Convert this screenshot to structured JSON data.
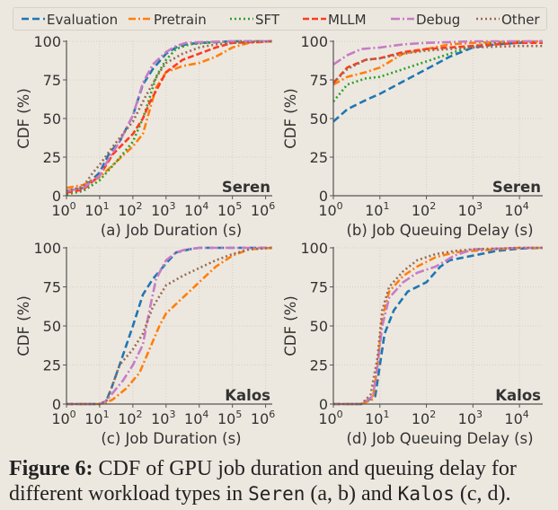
{
  "legend": [
    {
      "name": "Evaluation",
      "color": "#1f77b4",
      "dash": "8,4"
    },
    {
      "name": "Pretrain",
      "color": "#ff7f0e",
      "dash": "8,3,2,3"
    },
    {
      "name": "SFT",
      "color": "#2ca02c",
      "dash": "2,3"
    },
    {
      "name": "MLLM",
      "color": "#ff3b1f",
      "dash": "7,3"
    },
    {
      "name": "Debug",
      "color": "#c77cc5",
      "dash": "10,3,2,3"
    },
    {
      "name": "Other",
      "color": "#9a6a55",
      "dash": "2,3"
    }
  ],
  "caption": {
    "label": "Figure 6:",
    "text1": " CDF of GPU job duration and queuing delay for different workload types in ",
    "seren": "Seren",
    "text2": " (a, b) and ",
    "kalos": "Kalos",
    "text3": " (c, d)."
  },
  "chart_data": [
    {
      "id": "a",
      "type": "line",
      "title": "Seren",
      "xlabel": "(a) Job Duration (s)",
      "ylabel": "CDF (%)",
      "xscale": "log10",
      "xlim_exp": [
        0,
        6.2
      ],
      "ylim": [
        0,
        100
      ],
      "xticks_exp": [
        0,
        1,
        2,
        3,
        4,
        5,
        6
      ],
      "yticks": [
        0,
        25,
        50,
        75,
        100
      ],
      "grid": true,
      "series": [
        {
          "name": "Evaluation",
          "x_exp": [
            0,
            0.5,
            1,
            1.3,
            1.6,
            2,
            2.3,
            2.6,
            3,
            3.3,
            3.6,
            4,
            5,
            6.2
          ],
          "y": [
            3,
            5,
            15,
            28,
            35,
            52,
            72,
            82,
            92,
            96,
            98,
            99,
            100,
            100
          ]
        },
        {
          "name": "Pretrain",
          "x_exp": [
            0,
            0.5,
            1,
            1.5,
            2,
            2.3,
            2.5,
            2.7,
            3,
            3.5,
            4,
            4.5,
            5,
            5.5,
            6.2
          ],
          "y": [
            5,
            7,
            12,
            22,
            32,
            40,
            55,
            70,
            80,
            84,
            86,
            90,
            96,
            99,
            100
          ]
        },
        {
          "name": "SFT",
          "x_exp": [
            0,
            0.5,
            1,
            1.5,
            2,
            2.3,
            2.5,
            2.7,
            3,
            3.3,
            3.7,
            4.2,
            5,
            6.2
          ],
          "y": [
            1,
            3,
            10,
            22,
            35,
            50,
            63,
            77,
            88,
            95,
            98,
            99,
            100,
            100
          ]
        },
        {
          "name": "MLLM",
          "x_exp": [
            0,
            0.5,
            1,
            1.4,
            2,
            2.3,
            2.5,
            2.8,
            3,
            3.5,
            4,
            4.5,
            5,
            6.2
          ],
          "y": [
            2,
            4,
            13,
            27,
            40,
            50,
            60,
            72,
            80,
            88,
            92,
            96,
            99,
            100
          ]
        },
        {
          "name": "Debug",
          "x_exp": [
            0,
            0.5,
            1,
            1.3,
            1.6,
            2,
            2.3,
            2.6,
            3,
            3.3,
            3.6,
            4,
            5,
            6.2
          ],
          "y": [
            3,
            5,
            13,
            25,
            35,
            52,
            73,
            85,
            93,
            97,
            99,
            99.5,
            100,
            100
          ]
        },
        {
          "name": "Other",
          "x_exp": [
            0,
            0.5,
            0.8,
            1,
            1.4,
            2,
            2.4,
            2.8,
            3,
            3.5,
            4,
            4.5,
            5,
            6.2
          ],
          "y": [
            3,
            6,
            15,
            20,
            32,
            48,
            65,
            80,
            86,
            92,
            96,
            98,
            99,
            100
          ]
        }
      ]
    },
    {
      "id": "b",
      "type": "line",
      "title": "Seren",
      "xlabel": "(b) Job Queuing Delay (s)",
      "ylabel": "CDF (%)",
      "xscale": "log10",
      "xlim_exp": [
        0,
        4.5
      ],
      "ylim": [
        0,
        100
      ],
      "xticks_exp": [
        0,
        1,
        2,
        3,
        4
      ],
      "yticks": [
        0,
        25,
        50,
        75,
        100
      ],
      "grid": true,
      "series": [
        {
          "name": "Evaluation",
          "x_exp": [
            0,
            0.3,
            0.7,
            1,
            1.5,
            2,
            2.5,
            3,
            3.5,
            4,
            4.5
          ],
          "y": [
            48,
            56,
            62,
            66,
            74,
            82,
            90,
            96,
            98,
            99,
            100
          ]
        },
        {
          "name": "Pretrain",
          "x_exp": [
            0,
            0.3,
            0.7,
            1,
            1.5,
            2,
            2.5,
            3,
            3.5,
            4,
            4.5
          ],
          "y": [
            72,
            77,
            80,
            83,
            92,
            95,
            98,
            99,
            99.5,
            100,
            100
          ]
        },
        {
          "name": "SFT",
          "x_exp": [
            0,
            0.3,
            0.7,
            1,
            1.5,
            2,
            2.5,
            3,
            3.5,
            4,
            4.5
          ],
          "y": [
            61,
            72,
            76,
            77,
            82,
            87,
            92,
            97,
            99,
            99.5,
            100
          ]
        },
        {
          "name": "MLLM",
          "x_exp": [
            0,
            0.3,
            0.7,
            1,
            1.5,
            2,
            2.5,
            3,
            3.5,
            4,
            4.5
          ],
          "y": [
            73,
            83,
            88,
            89,
            93,
            95,
            96,
            97,
            98,
            99,
            99
          ]
        },
        {
          "name": "Debug",
          "x_exp": [
            0,
            0.3,
            0.6,
            1,
            1.5,
            2,
            2.5,
            3,
            3.5,
            4,
            4.5
          ],
          "y": [
            85,
            91,
            95,
            96,
            98,
            99,
            99.5,
            100,
            100,
            100,
            100
          ]
        },
        {
          "name": "Other",
          "x_exp": [
            0,
            0.3,
            0.7,
            1,
            1.5,
            2,
            2.5,
            3,
            3.5,
            4,
            4.5
          ],
          "y": [
            73,
            82,
            88,
            89,
            92,
            94,
            95,
            96,
            96.5,
            97,
            97
          ]
        }
      ]
    },
    {
      "id": "c",
      "type": "line",
      "title": "Kalos",
      "xlabel": "(c) Job Duration (s)",
      "ylabel": "CDF (%)",
      "xscale": "log10",
      "xlim_exp": [
        0,
        6.2
      ],
      "ylim": [
        0,
        100
      ],
      "xticks_exp": [
        0,
        1,
        2,
        3,
        4,
        5,
        6
      ],
      "yticks": [
        0,
        25,
        50,
        75,
        100
      ],
      "grid": true,
      "series": [
        {
          "name": "Evaluation",
          "x_exp": [
            0,
            1,
            1.2,
            1.35,
            1.6,
            2,
            2.3,
            2.6,
            3,
            3.3,
            3.7,
            4,
            5,
            6.2
          ],
          "y": [
            0,
            0,
            2,
            10,
            25,
            50,
            70,
            80,
            90,
            97,
            99,
            100,
            100,
            100
          ]
        },
        {
          "name": "Pretrain",
          "x_exp": [
            0,
            1,
            1.2,
            1.4,
            1.8,
            2.2,
            2.5,
            2.8,
            3,
            3.5,
            4,
            4.5,
            5,
            5.5,
            6.2
          ],
          "y": [
            0,
            0,
            1,
            3,
            10,
            20,
            35,
            50,
            58,
            68,
            78,
            88,
            95,
            99,
            100
          ]
        },
        {
          "name": "Debug",
          "x_exp": [
            0,
            1,
            1.2,
            1.35,
            1.7,
            2,
            2.3,
            2.5,
            2.7,
            3,
            3.3,
            3.6,
            4,
            5,
            6.2
          ],
          "y": [
            0,
            0,
            2,
            6,
            15,
            25,
            38,
            60,
            80,
            92,
            97,
            99,
            100,
            100,
            100
          ]
        },
        {
          "name": "Other",
          "x_exp": [
            0,
            1,
            1.2,
            1.35,
            1.6,
            2,
            2.3,
            2.6,
            3,
            3.5,
            4,
            4.5,
            5,
            5.5,
            6.2
          ],
          "y": [
            0,
            0,
            2,
            10,
            25,
            35,
            45,
            62,
            76,
            82,
            87,
            92,
            96,
            99,
            100
          ]
        }
      ]
    },
    {
      "id": "d",
      "type": "line",
      "title": "Kalos",
      "xlabel": "(d) Job Queuing Delay (s)",
      "ylabel": "CDF (%)",
      "xscale": "log10",
      "xlim_exp": [
        0,
        4.5
      ],
      "ylim": [
        0,
        100
      ],
      "xticks_exp": [
        0,
        1,
        2,
        3,
        4
      ],
      "yticks": [
        0,
        25,
        50,
        75,
        100
      ],
      "grid": true,
      "series": [
        {
          "name": "Evaluation",
          "x_exp": [
            0,
            0.6,
            0.9,
            1,
            1.1,
            1.3,
            1.6,
            2,
            2.3,
            2.5,
            3,
            3.5,
            4,
            4.5
          ],
          "y": [
            0,
            0,
            5,
            25,
            45,
            60,
            72,
            78,
            88,
            92,
            95,
            98,
            99.5,
            100
          ]
        },
        {
          "name": "Pretrain",
          "x_exp": [
            0,
            0.6,
            0.85,
            0.95,
            1.05,
            1.2,
            1.5,
            1.8,
            2.2,
            2.6,
            3,
            3.5,
            4,
            4.5
          ],
          "y": [
            0,
            0,
            3,
            25,
            55,
            72,
            82,
            88,
            94,
            97,
            98,
            99,
            100,
            100
          ]
        },
        {
          "name": "Debug",
          "x_exp": [
            0,
            0.6,
            0.85,
            0.95,
            1.05,
            1.2,
            1.5,
            1.8,
            2.2,
            2.6,
            3,
            3.5,
            4,
            4.5
          ],
          "y": [
            0,
            0,
            5,
            25,
            50,
            68,
            78,
            84,
            88,
            95,
            99,
            99.5,
            100,
            100
          ]
        },
        {
          "name": "Other",
          "x_exp": [
            0,
            0.6,
            0.8,
            0.95,
            1.05,
            1.2,
            1.5,
            1.8,
            2.2,
            2.6,
            3,
            3.5,
            4,
            4.5
          ],
          "y": [
            0,
            0,
            6,
            30,
            60,
            75,
            85,
            92,
            96,
            98,
            99,
            99.5,
            100,
            100
          ]
        }
      ]
    }
  ]
}
